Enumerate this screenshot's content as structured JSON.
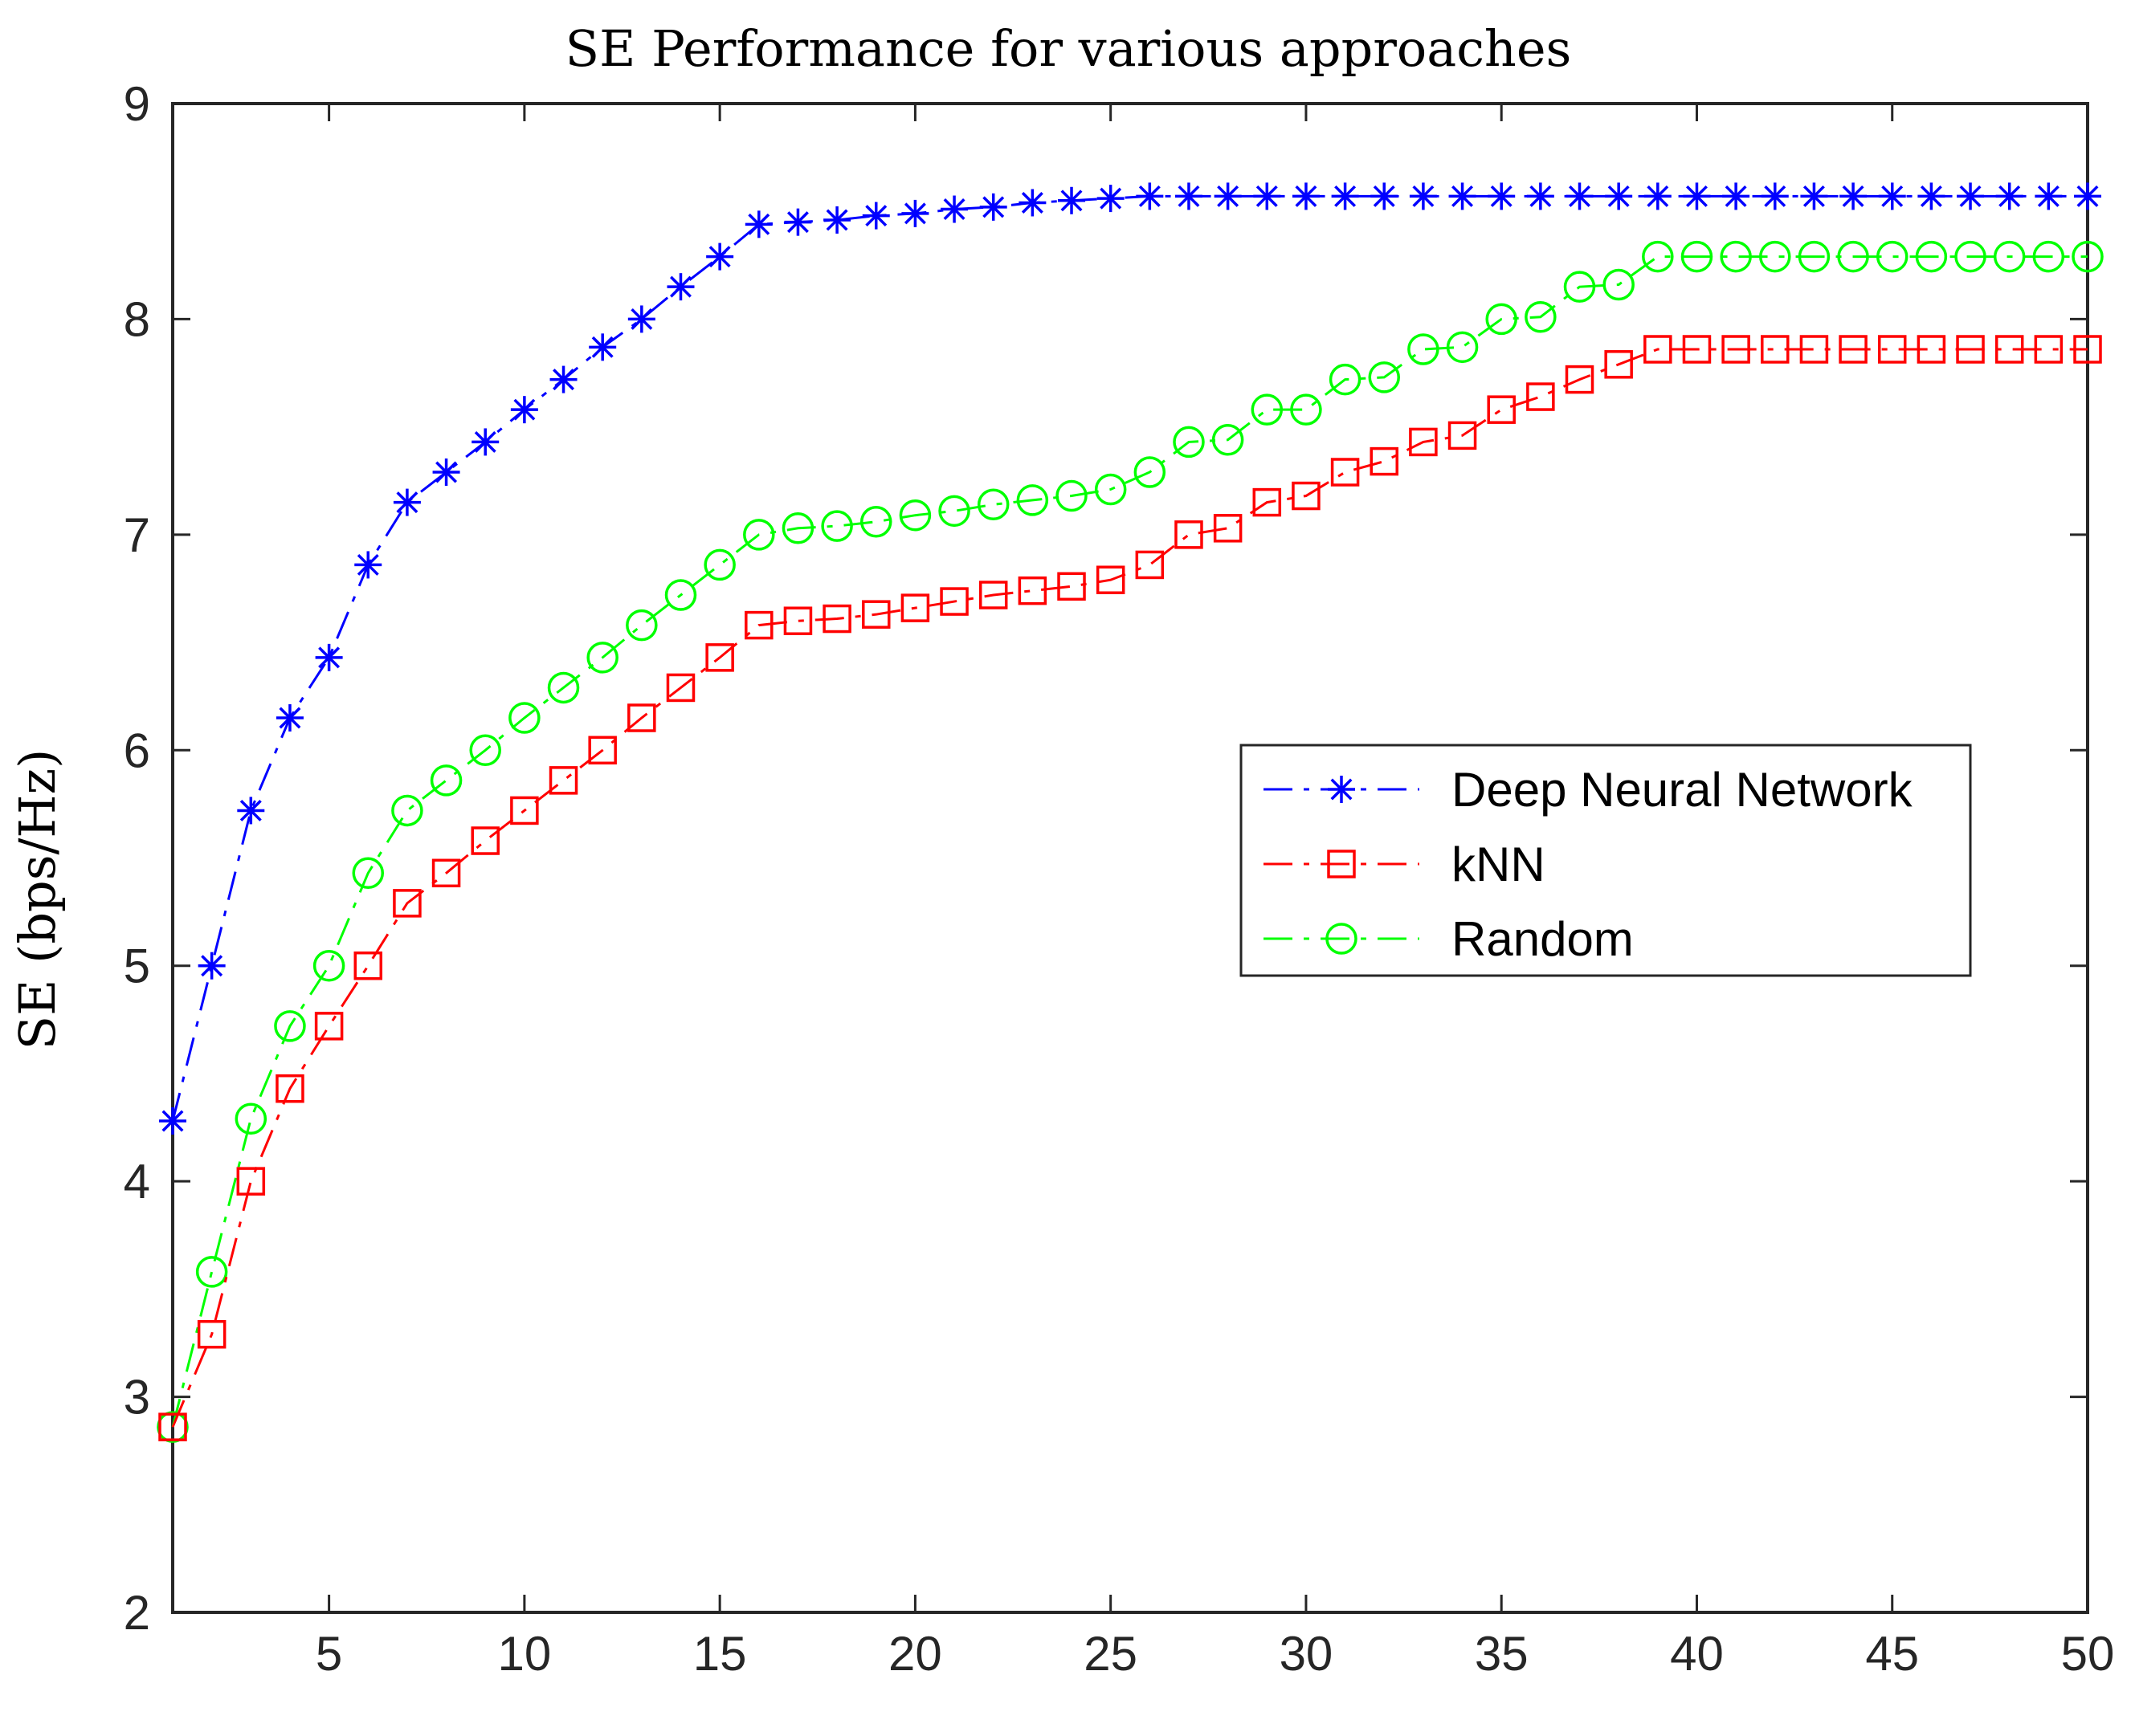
{
  "chart_data": {
    "type": "line",
    "title": "SE Performance for various approaches",
    "xlabel": "",
    "ylabel": "SE (bps/Hz)",
    "xlim": [
      1,
      50
    ],
    "ylim": [
      2,
      9
    ],
    "xticks": [
      5,
      10,
      15,
      20,
      25,
      30,
      35,
      40,
      45,
      50
    ],
    "yticks": [
      2,
      3,
      4,
      5,
      6,
      7,
      8,
      9
    ],
    "x": [
      1,
      2,
      3,
      4,
      5,
      6,
      7,
      8,
      9,
      10,
      11,
      12,
      13,
      14,
      15,
      16,
      17,
      18,
      19,
      20,
      21,
      22,
      23,
      24,
      25,
      26,
      27,
      28,
      29,
      30,
      31,
      32,
      33,
      34,
      35,
      36,
      37,
      38,
      39,
      40,
      41,
      42,
      43,
      44,
      45,
      46,
      47,
      48,
      49,
      50
    ],
    "legend_position": "center-right",
    "series": [
      {
        "name": "Deep Neural Network",
        "color": "#0000ff",
        "marker": "asterisk",
        "values": [
          4.28,
          5.0,
          5.72,
          6.15,
          6.43,
          6.86,
          7.15,
          7.29,
          7.43,
          7.58,
          7.72,
          7.87,
          8.0,
          8.15,
          8.29,
          8.44,
          8.45,
          8.46,
          8.48,
          8.49,
          8.51,
          8.52,
          8.54,
          8.55,
          8.56,
          8.57,
          8.57,
          8.57,
          8.57,
          8.57,
          8.57,
          8.57,
          8.57,
          8.57,
          8.57,
          8.57,
          8.57,
          8.57,
          8.57,
          8.57,
          8.57,
          8.57,
          8.57,
          8.57,
          8.57,
          8.57,
          8.57,
          8.57,
          8.57,
          8.57
        ]
      },
      {
        "name": "kNN",
        "color": "#ff0000",
        "marker": "square",
        "values": [
          2.86,
          3.29,
          4.0,
          4.43,
          4.72,
          5.0,
          5.29,
          5.43,
          5.58,
          5.72,
          5.86,
          6.0,
          6.15,
          6.29,
          6.43,
          6.58,
          6.6,
          6.61,
          6.63,
          6.66,
          6.69,
          6.72,
          6.74,
          6.76,
          6.79,
          6.86,
          7.0,
          7.03,
          7.15,
          7.18,
          7.29,
          7.34,
          7.43,
          7.46,
          7.58,
          7.64,
          7.72,
          7.79,
          7.86,
          7.86,
          7.86,
          7.86,
          7.86,
          7.86,
          7.86,
          7.86,
          7.86,
          7.86,
          7.86,
          7.86
        ]
      },
      {
        "name": "Random",
        "color": "#00ff00",
        "marker": "circle",
        "values": [
          2.86,
          3.58,
          4.29,
          4.72,
          5.0,
          5.43,
          5.72,
          5.86,
          6.0,
          6.15,
          6.29,
          6.43,
          6.58,
          6.72,
          6.86,
          7.0,
          7.03,
          7.04,
          7.06,
          7.09,
          7.11,
          7.14,
          7.16,
          7.18,
          7.21,
          7.29,
          7.43,
          7.44,
          7.58,
          7.58,
          7.72,
          7.73,
          7.86,
          7.87,
          8.0,
          8.01,
          8.15,
          8.16,
          8.29,
          8.29,
          8.29,
          8.29,
          8.29,
          8.29,
          8.29,
          8.29,
          8.29,
          8.29,
          8.29,
          8.29
        ]
      }
    ]
  }
}
